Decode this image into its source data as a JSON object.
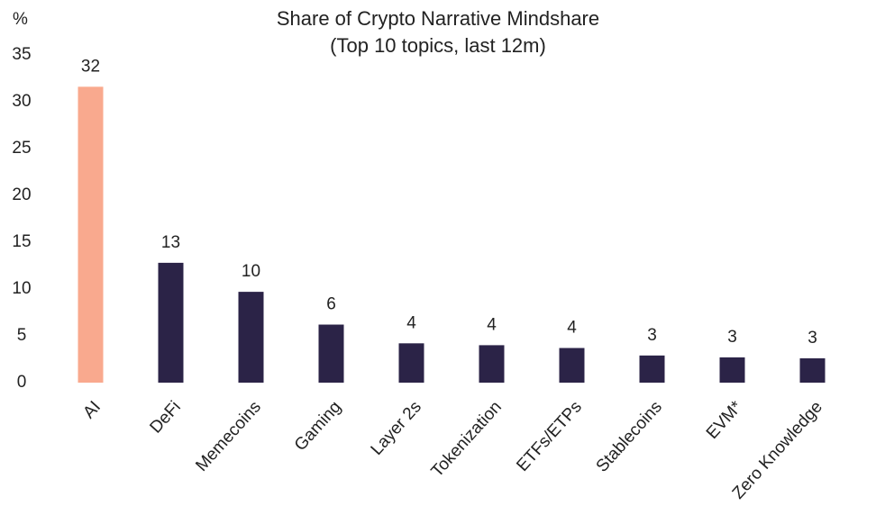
{
  "chart_data": {
    "type": "bar",
    "title": "Share of Crypto Narrative Mindshare",
    "subtitle": "(Top 10 topics, last 12m)",
    "y_label": "%",
    "categories": [
      "AI",
      "DeFi",
      "Memecoins",
      "Gaming",
      "Layer 2s",
      "Tokenization",
      "ETFs/ETPs",
      "Stablecoins",
      "EVM*",
      "Zero Knowledge"
    ],
    "values": [
      31.6,
      12.8,
      9.7,
      6.2,
      4.2,
      4.0,
      3.7,
      2.9,
      2.7,
      2.6
    ],
    "value_labels": [
      "32",
      "13",
      "10",
      "6",
      "4",
      "4",
      "4",
      "3",
      "3",
      "3"
    ],
    "colors": [
      "#f9a98e",
      "#2b2347",
      "#2b2347",
      "#2b2347",
      "#2b2347",
      "#2b2347",
      "#2b2347",
      "#2b2347",
      "#2b2347",
      "#2b2347"
    ],
    "ylim": [
      0,
      35
    ],
    "yticks": [
      0,
      5,
      10,
      15,
      20,
      25,
      30,
      35
    ],
    "grid": false
  }
}
